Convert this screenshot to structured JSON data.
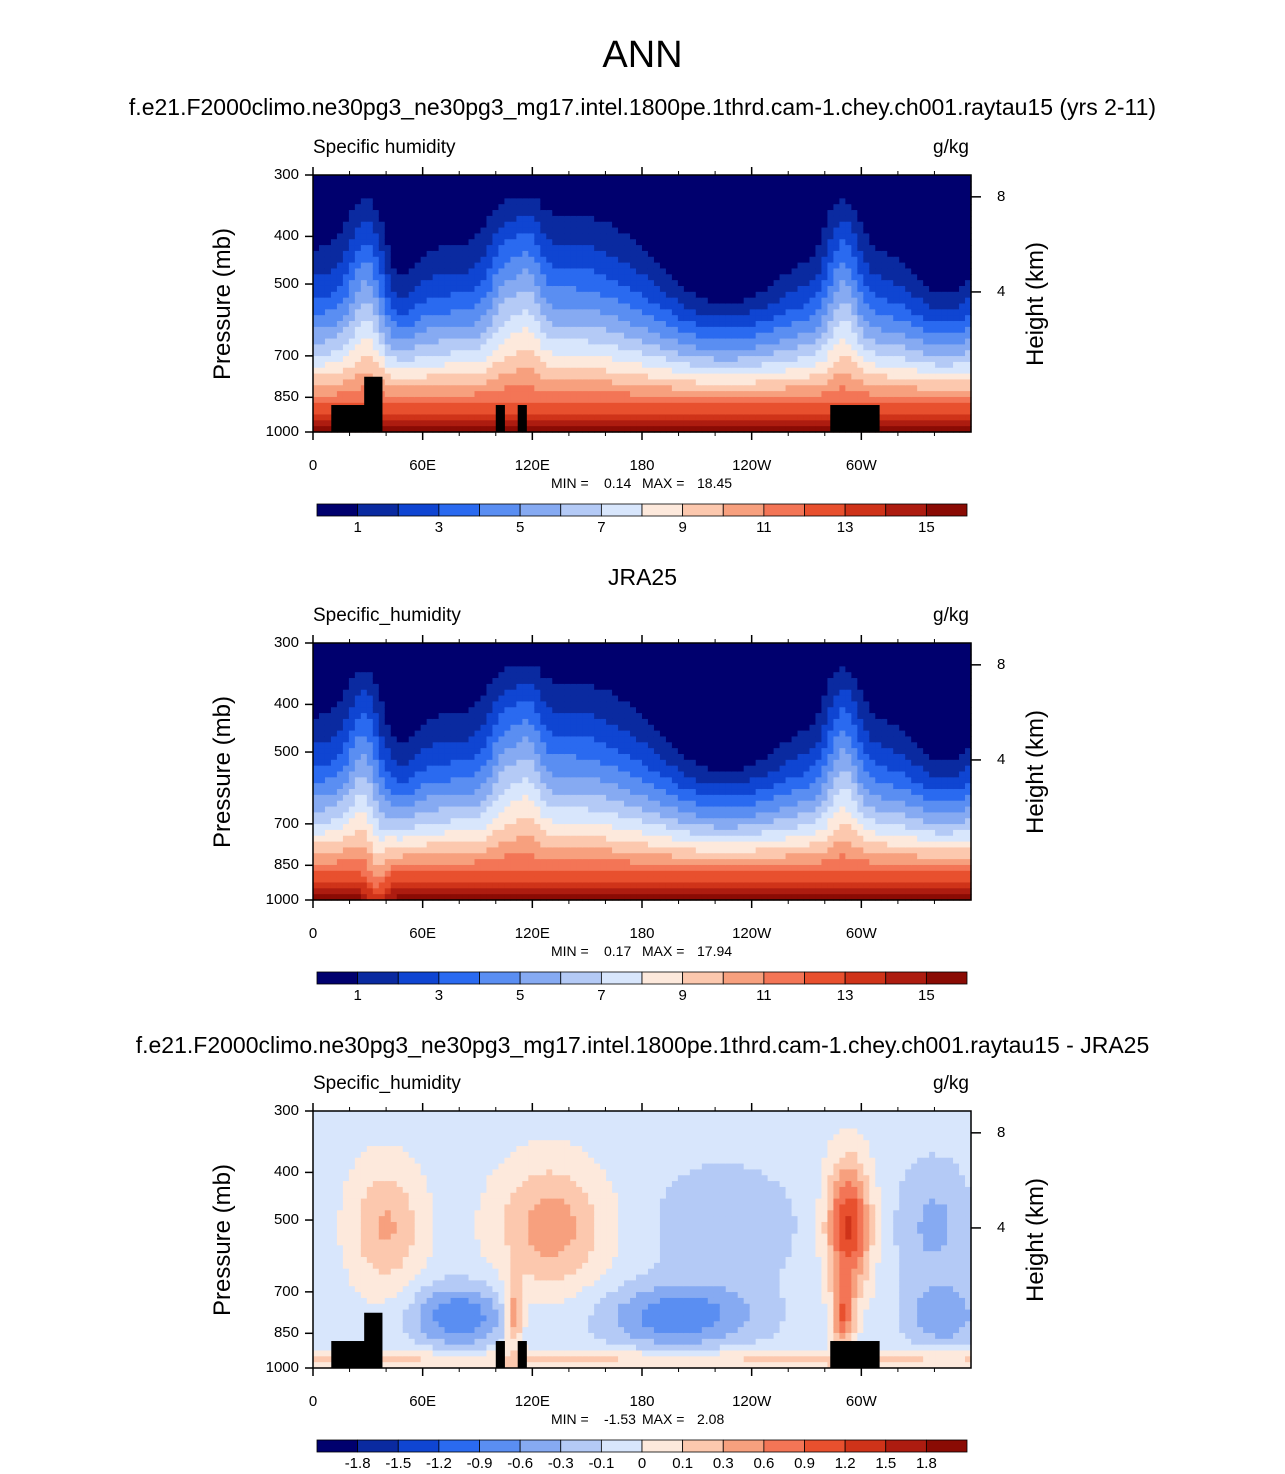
{
  "figure": {
    "title": "ANN"
  },
  "colors": {
    "palette": [
      "#00006e",
      "#0a2aa0",
      "#0f45d2",
      "#2a6af0",
      "#5a8ef2",
      "#86aaf2",
      "#b4caf6",
      "#d8e6fc",
      "#fde9dc",
      "#fcc8ae",
      "#f7a07e",
      "#f37556",
      "#e8502e",
      "#cf3319",
      "#ad1c10",
      "#8a0b04"
    ],
    "land": "#000000"
  },
  "chart_data": [
    {
      "type": "heatmap",
      "panel_title": "f.e21.F2000climo.ne30pg3_ne30pg3_mg17.intel.1800pe.1thrd.cam-1.chey.ch001.raytau15 (yrs 2-11)",
      "variable": "Specific humidity",
      "units": "g/kg",
      "ylabel": "Pressure (mb)",
      "right_ylabel": "Height (km)",
      "x_ticks": [
        "0",
        "60E",
        "120E",
        "180",
        "120W",
        "60W"
      ],
      "y_ticks": [
        "300",
        "400",
        "500",
        "700",
        "850",
        "1000"
      ],
      "right_ticks": [
        "8",
        "4"
      ],
      "xlim": [
        0,
        360
      ],
      "ylim": [
        1000,
        300
      ],
      "min_label": "MIN =",
      "max_label": "MAX =",
      "min": "0.14",
      "max": "18.45",
      "colorbar_ticks": [
        "1",
        "3",
        "5",
        "7",
        "9",
        "11",
        "13",
        "15"
      ],
      "mode": "abs",
      "variant": "model"
    },
    {
      "type": "heatmap",
      "panel_title": "JRA25",
      "variable": "Specific_humidity",
      "units": "g/kg",
      "ylabel": "Pressure (mb)",
      "right_ylabel": "Height (km)",
      "x_ticks": [
        "0",
        "60E",
        "120E",
        "180",
        "120W",
        "60W"
      ],
      "y_ticks": [
        "300",
        "400",
        "500",
        "700",
        "850",
        "1000"
      ],
      "right_ticks": [
        "8",
        "4"
      ],
      "xlim": [
        0,
        360
      ],
      "ylim": [
        1000,
        300
      ],
      "min_label": "MIN =",
      "max_label": "MAX =",
      "min": "0.17",
      "max": "17.94",
      "colorbar_ticks": [
        "1",
        "3",
        "5",
        "7",
        "9",
        "11",
        "13",
        "15"
      ],
      "mode": "abs",
      "variant": "obs"
    },
    {
      "type": "heatmap",
      "panel_title": "f.e21.F2000climo.ne30pg3_ne30pg3_mg17.intel.1800pe.1thrd.cam-1.chey.ch001.raytau15 - JRA25",
      "variable": "Specific_humidity",
      "units": "g/kg",
      "ylabel": "Pressure (mb)",
      "right_ylabel": "Height (km)",
      "x_ticks": [
        "0",
        "60E",
        "120E",
        "180",
        "120W",
        "60W"
      ],
      "y_ticks": [
        "300",
        "400",
        "500",
        "700",
        "850",
        "1000"
      ],
      "right_ticks": [
        "8",
        "4"
      ],
      "xlim": [
        0,
        360
      ],
      "ylim": [
        1000,
        300
      ],
      "min_label": "MIN =",
      "max_label": "MAX =",
      "min": "-1.53",
      "max": "2.08",
      "colorbar_ticks": [
        "-1.8",
        "-1.5",
        "-1.2",
        "-0.9",
        "-0.6",
        "-0.3",
        "-0.1",
        "0",
        "0.1",
        "0.3",
        "0.6",
        "0.9",
        "1.2",
        "1.5",
        "1.8"
      ],
      "mode": "diff",
      "variant": "diff"
    }
  ]
}
